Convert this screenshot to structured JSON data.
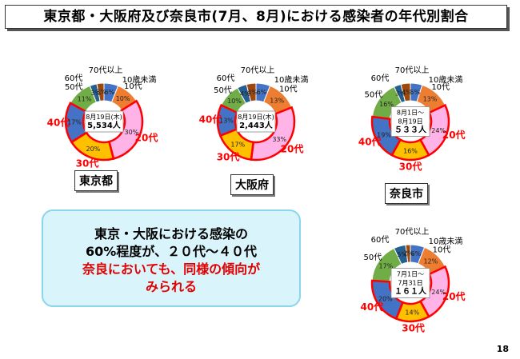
{
  "title": "東京都・大阪府及び奈良市(7月、8月)における感染者の年代別割合",
  "message": {
    "line1": "東京・大阪における感染の",
    "line2": "60%程度が、２０代～４０代",
    "line3": "奈良においても、同様の傾向が",
    "line4": "みられる"
  },
  "page_number": "18",
  "colors": {
    "10歳未満": "#4472c4",
    "10代": "#ed7d31",
    "20代": "#ffb3e6",
    "30代": "#ffc000",
    "40代": "#4472c4",
    "50代": "#70ad47",
    "60代": "#255e91",
    "70代以上": "#9e480e",
    "highlight": "#ff0000"
  },
  "chart_data": [
    {
      "type": "pie",
      "donut": true,
      "name": "東京都",
      "center": [
        "8月19日(木)",
        "5,534人"
      ],
      "categories": [
        "10歳未満",
        "10代",
        "20代",
        "30代",
        "40代",
        "50代",
        "60代",
        "70代以上"
      ],
      "values": [
        6,
        10,
        30,
        20,
        17,
        11,
        3,
        3
      ],
      "percent_labels": [
        "6%",
        "10%",
        "30%",
        "20%",
        "17%",
        "11%",
        "3%",
        "3%"
      ],
      "highlighted": [
        "20代",
        "30代",
        "40代"
      ]
    },
    {
      "type": "pie",
      "donut": true,
      "name": "大阪府",
      "center": [
        "8月19日(木)",
        "2,443人"
      ],
      "categories": [
        "10歳未満",
        "10代",
        "20代",
        "30代",
        "40代",
        "50代",
        "60代",
        "70代以上"
      ],
      "values": [
        6,
        13,
        33,
        17,
        13,
        10,
        4,
        4
      ],
      "percent_labels": [
        "6%",
        "13%",
        "33%",
        "17%",
        "13%",
        "10%",
        "4%",
        "4%"
      ],
      "highlighted": [
        "20代",
        "30代",
        "40代"
      ]
    },
    {
      "type": "pie",
      "donut": true,
      "name": "奈良市",
      "center": [
        "8月1日～",
        "8月19日",
        "５３３人"
      ],
      "categories": [
        "10歳未満",
        "10代",
        "20代",
        "30代",
        "40代",
        "50代",
        "60代",
        "70代以上"
      ],
      "values": [
        5,
        13,
        24,
        16,
        19,
        16,
        3,
        4
      ],
      "percent_labels": [
        "5%",
        "13%",
        "24%",
        "16%",
        "19%",
        "16%",
        "3%",
        "4%"
      ],
      "highlighted": [
        "20代",
        "30代",
        "40代"
      ]
    },
    {
      "type": "pie",
      "donut": true,
      "name": "",
      "center": [
        "7月1日～",
        "7月31日",
        "１６１人"
      ],
      "categories": [
        "10歳未満",
        "10代",
        "20代",
        "30代",
        "40代",
        "50代",
        "60代",
        "70代以上"
      ],
      "values": [
        6,
        12,
        24,
        14,
        20,
        17,
        5,
        2
      ],
      "percent_labels": [
        "6%",
        "12%",
        "24%",
        "14%",
        "20%",
        "17%",
        "5%",
        "2%"
      ],
      "highlighted": [
        "20代",
        "30代",
        "40代"
      ]
    }
  ]
}
